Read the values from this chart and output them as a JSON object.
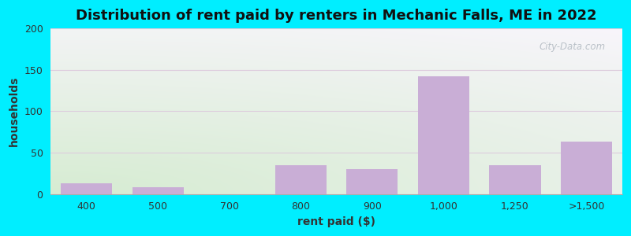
{
  "title": "Distribution of rent paid by renters in Mechanic Falls, ME in 2022",
  "xlabel": "rent paid ($)",
  "ylabel": "households",
  "categories": [
    "400",
    "500",
    "700",
    "800",
    "900",
    "1,000",
    "1,250",
    ">1,500"
  ],
  "values": [
    13,
    8,
    0,
    35,
    30,
    142,
    35,
    63
  ],
  "bar_color": "#c9aed6",
  "ylim": [
    0,
    200
  ],
  "yticks": [
    0,
    50,
    100,
    150,
    200
  ],
  "bg_color_green": "#d6ecd2",
  "bg_color_white": "#f8f5fb",
  "outer_bg": "#00eeff",
  "grid_color": "#ddccdd",
  "title_fontsize": 13,
  "axis_label_fontsize": 10,
  "tick_fontsize": 9,
  "watermark_text": "City-Data.com",
  "title_color": "#111111",
  "label_color": "#333333"
}
